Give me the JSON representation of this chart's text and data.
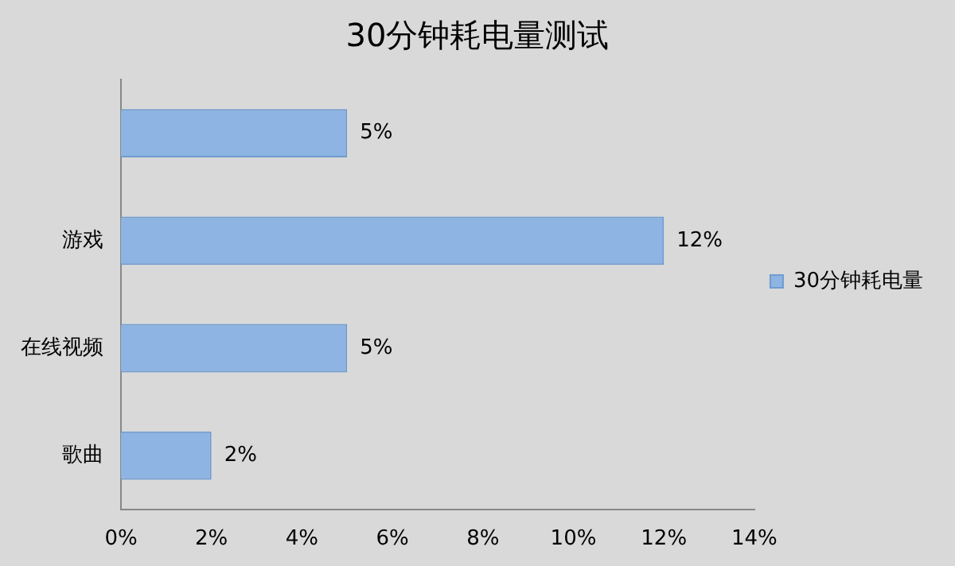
{
  "chart_data": {
    "type": "bar",
    "orientation": "horizontal",
    "title": "30分钟耗电量测试",
    "categories": [
      null,
      "游戏",
      "在线视频",
      "歌曲"
    ],
    "series": [
      {
        "name": "30分钟耗电量",
        "color": "#8db4e2",
        "values": [
          5,
          12,
          5,
          2
        ],
        "value_labels": [
          "5%",
          "12%",
          "5%",
          "2%"
        ]
      }
    ],
    "xlim": [
      0,
      14
    ],
    "xticks": [
      {
        "value": 0,
        "label": "0%"
      },
      {
        "value": 2,
        "label": "2%"
      },
      {
        "value": 4,
        "label": "4%"
      },
      {
        "value": 6,
        "label": "6%"
      },
      {
        "value": 8,
        "label": "8%"
      },
      {
        "value": 10,
        "label": "10%"
      },
      {
        "value": 12,
        "label": "12%"
      },
      {
        "value": 14,
        "label": "14%"
      }
    ],
    "grid": false,
    "legend": "right"
  }
}
